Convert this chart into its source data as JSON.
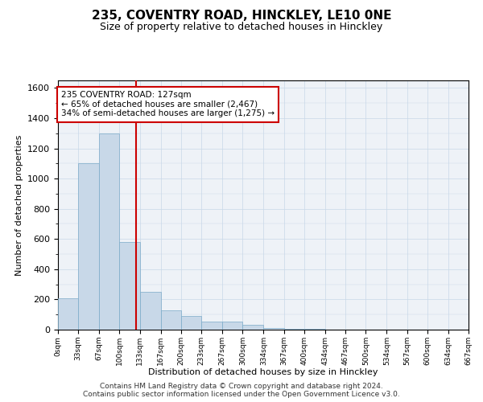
{
  "title_line1": "235, COVENTRY ROAD, HINCKLEY, LE10 0NE",
  "title_line2": "Size of property relative to detached houses in Hinckley",
  "xlabel": "Distribution of detached houses by size in Hinckley",
  "ylabel": "Number of detached properties",
  "bin_edges": [
    0,
    33,
    67,
    100,
    133,
    167,
    200,
    233,
    267,
    300,
    334,
    367,
    400,
    434,
    467,
    500,
    534,
    567,
    600,
    634,
    667
  ],
  "bar_heights": [
    210,
    1100,
    1300,
    580,
    250,
    130,
    90,
    55,
    55,
    30,
    10,
    5,
    3,
    2,
    1,
    1,
    0,
    0,
    0,
    0
  ],
  "bar_color": "#c8d8e8",
  "bar_edge_color": "#7aaac8",
  "property_size": 127,
  "vline_color": "#cc0000",
  "annotation_line1": "235 COVENTRY ROAD: 127sqm",
  "annotation_line2": "← 65% of detached houses are smaller (2,467)",
  "annotation_line3": "34% of semi-detached houses are larger (1,275) →",
  "annotation_box_facecolor": "#ffffff",
  "annotation_box_edgecolor": "#cc0000",
  "ylim": [
    0,
    1650
  ],
  "xlim": [
    0,
    667
  ],
  "tick_labels": [
    "0sqm",
    "33sqm",
    "67sqm",
    "100sqm",
    "133sqm",
    "167sqm",
    "200sqm",
    "233sqm",
    "267sqm",
    "300sqm",
    "334sqm",
    "367sqm",
    "400sqm",
    "434sqm",
    "467sqm",
    "500sqm",
    "534sqm",
    "567sqm",
    "600sqm",
    "634sqm",
    "667sqm"
  ],
  "tick_positions": [
    0,
    33,
    67,
    100,
    133,
    167,
    200,
    233,
    267,
    300,
    334,
    367,
    400,
    434,
    467,
    500,
    534,
    567,
    600,
    634,
    667
  ],
  "grid_color": "#c8d8e8",
  "background_color": "#eef2f7",
  "footer_line1": "Contains HM Land Registry data © Crown copyright and database right 2024.",
  "footer_line2": "Contains public sector information licensed under the Open Government Licence v3.0.",
  "title_fontsize": 11,
  "subtitle_fontsize": 9,
  "axis_label_fontsize": 8,
  "tick_fontsize": 6.5,
  "annotation_fontsize": 7.5,
  "footer_fontsize": 6.5,
  "ylabel_fontsize": 8
}
